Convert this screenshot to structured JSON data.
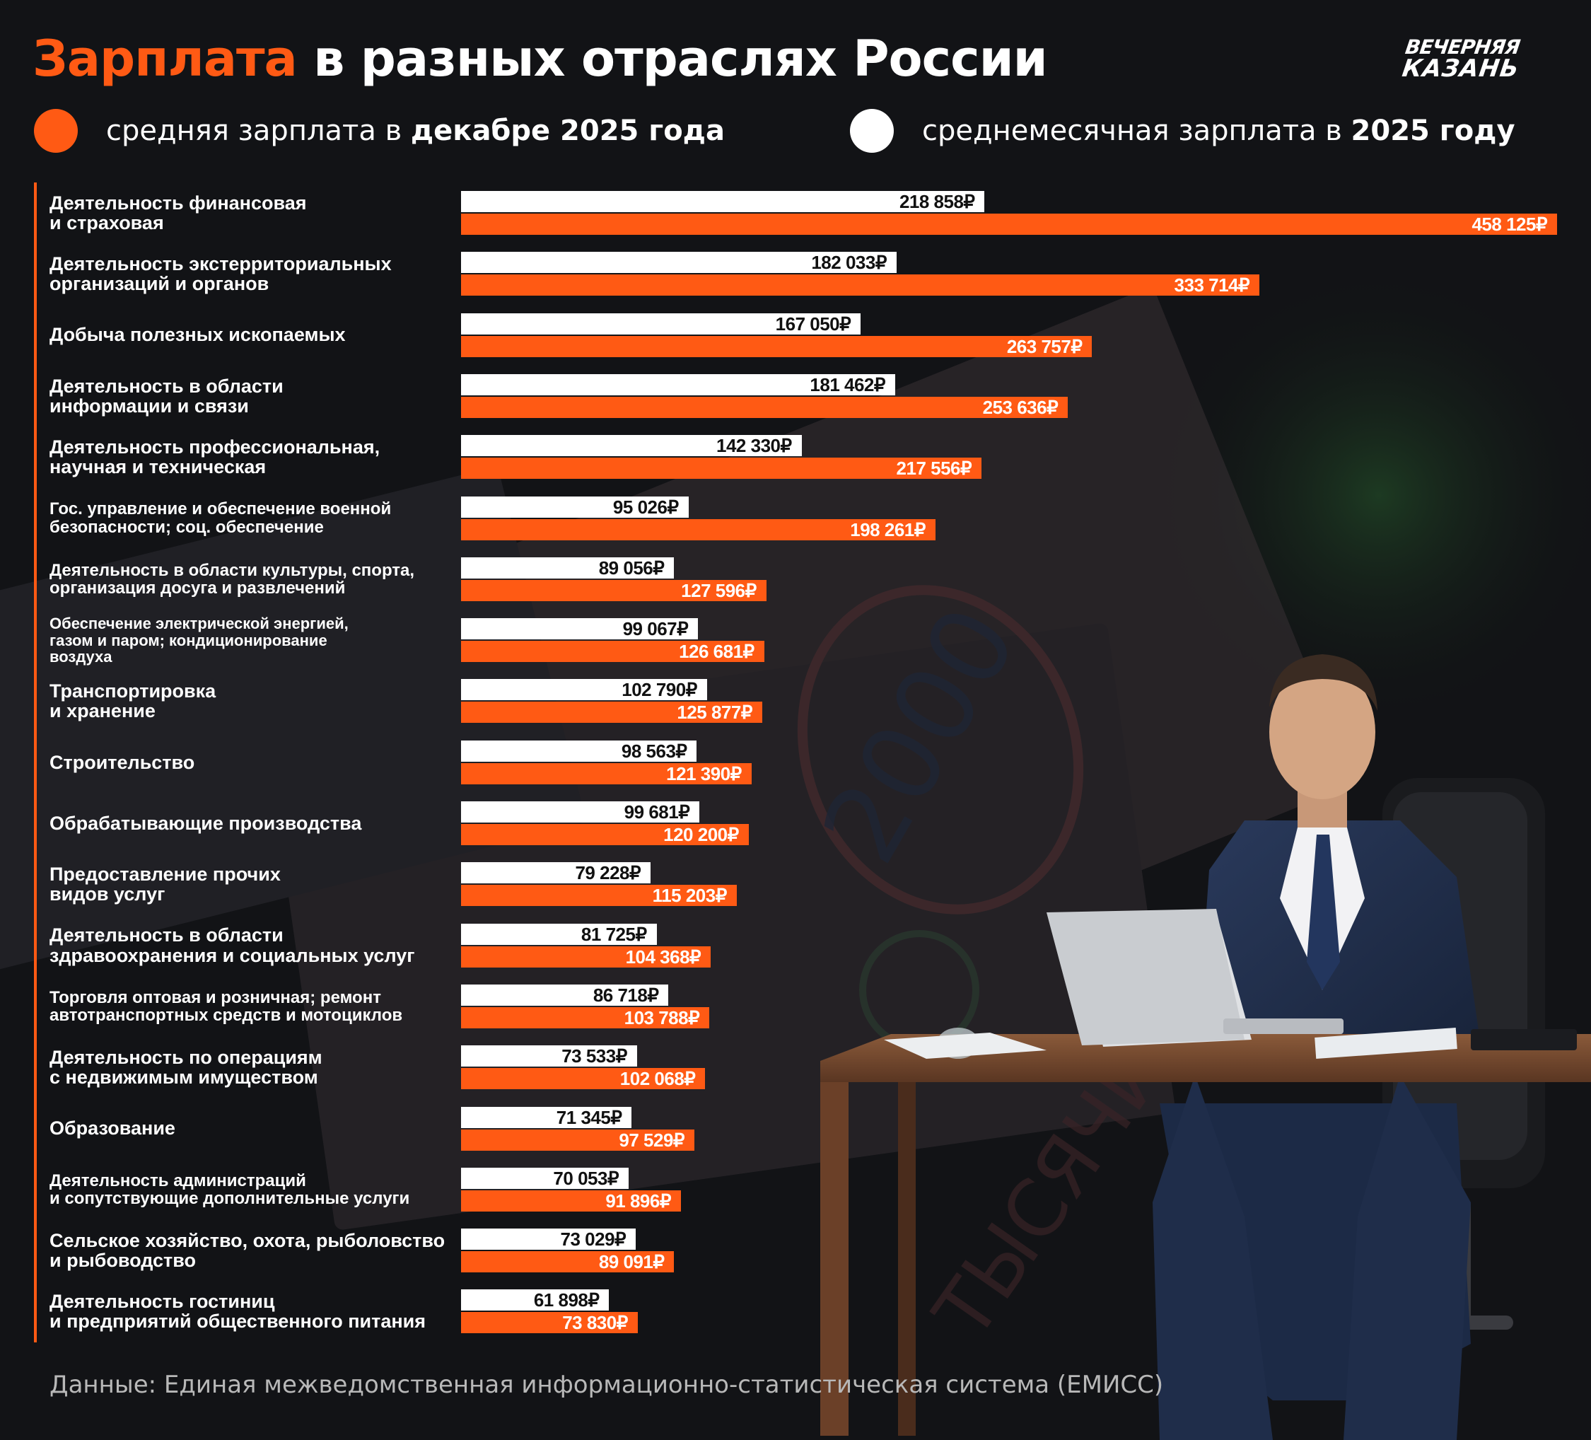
{
  "header": {
    "title_highlight": "Зарплата",
    "title_rest": " в разных отраслях России",
    "logo_line1": "ВЕЧЕРНЯЯ",
    "logo_line2": "КАЗАНЬ"
  },
  "legend": {
    "orange_text": "средняя зарплата в ",
    "orange_bold": "декабре 2025 года",
    "white_text": "среднемесячная зарплата в ",
    "white_bold": "2025 году"
  },
  "colors": {
    "accent": "#ff5a14",
    "white": "#ffffff",
    "background": "#111214"
  },
  "chart_data": {
    "type": "bar",
    "orientation": "horizontal",
    "title": "Зарплата в разных отраслях России",
    "unit": "₽",
    "categories": [
      "Деятельность финансовая\nи страховая",
      "Деятельность экстерриториальных\nорганизаций и органов",
      "Добыча полезных ископаемых",
      "Деятельность в области\nинформации и связи",
      "Деятельность профессиональная,\nнаучная и техническая",
      "Гос. управление и обеспечение военной\nбезопасности; соц. обеспечение",
      "Деятельность в области культуры, спорта,\nорганизация досуга и развлечений",
      "Обеспечение электрической энергией,\nгазом и паром; кондиционирование\nвоздуха",
      "Транспортировка\nи хранение",
      "Строительство",
      "Обрабатывающие производства",
      "Предоставление прочих\nвидов услуг",
      "Деятельность в области\nздравоохранения и социальных услуг",
      "Торговля оптовая и розничная; ремонт\nавтотранспортных средств и мотоциклов",
      "Деятельность по операциям\nс недвижимым имуществом",
      "Образование",
      "Деятельность администраций\nи сопутствующие дополнительные услуги",
      "Сельское хозяйство, охота, рыболовство\nи рыбоводство",
      "Деятельность гостиниц\nи предприятий общественного питания"
    ],
    "series": [
      {
        "name": "среднемесячная зарплата в 2025 году",
        "color": "#ffffff",
        "values": [
          218858,
          182033,
          167050,
          181462,
          142330,
          95026,
          89056,
          99067,
          102790,
          98563,
          99681,
          79228,
          81725,
          86718,
          73533,
          71345,
          70053,
          73029,
          61898
        ],
        "labels": [
          "218 858₽",
          "182 033₽",
          "167 050₽",
          "181 462₽",
          "142 330₽",
          "95 026₽",
          "89 056₽",
          "99 067₽",
          "102 790₽",
          "98 563₽",
          "99 681₽",
          "79 228₽",
          "81 725₽",
          "86 718₽",
          "73 533₽",
          "71 345₽",
          "70 053₽",
          "73 029₽",
          "61 898₽"
        ]
      },
      {
        "name": "средняя зарплата в декабре 2025 года",
        "color": "#ff5a14",
        "values": [
          458125,
          333714,
          263757,
          253636,
          217556,
          198261,
          127596,
          126681,
          125877,
          121390,
          120200,
          115203,
          104368,
          103788,
          102068,
          97529,
          91896,
          89091,
          73830
        ],
        "labels": [
          "458 125₽",
          "333 714₽",
          "263 757₽",
          "253 636₽",
          "217 556₽",
          "198 261₽",
          "127 596₽",
          "126 681₽",
          "125 877₽",
          "121 390₽",
          "120 200₽",
          "115 203₽",
          "104 368₽",
          "103 788₽",
          "102 068₽",
          "97 529₽",
          "91 896₽",
          "89 091₽",
          "73 830₽"
        ]
      }
    ],
    "xlim": [
      0,
      458125
    ],
    "grid": false,
    "legend_position": "top"
  },
  "footer": {
    "source": "Данные: Единая межведомственная информационно-статистическая система (ЕМИСС)"
  }
}
